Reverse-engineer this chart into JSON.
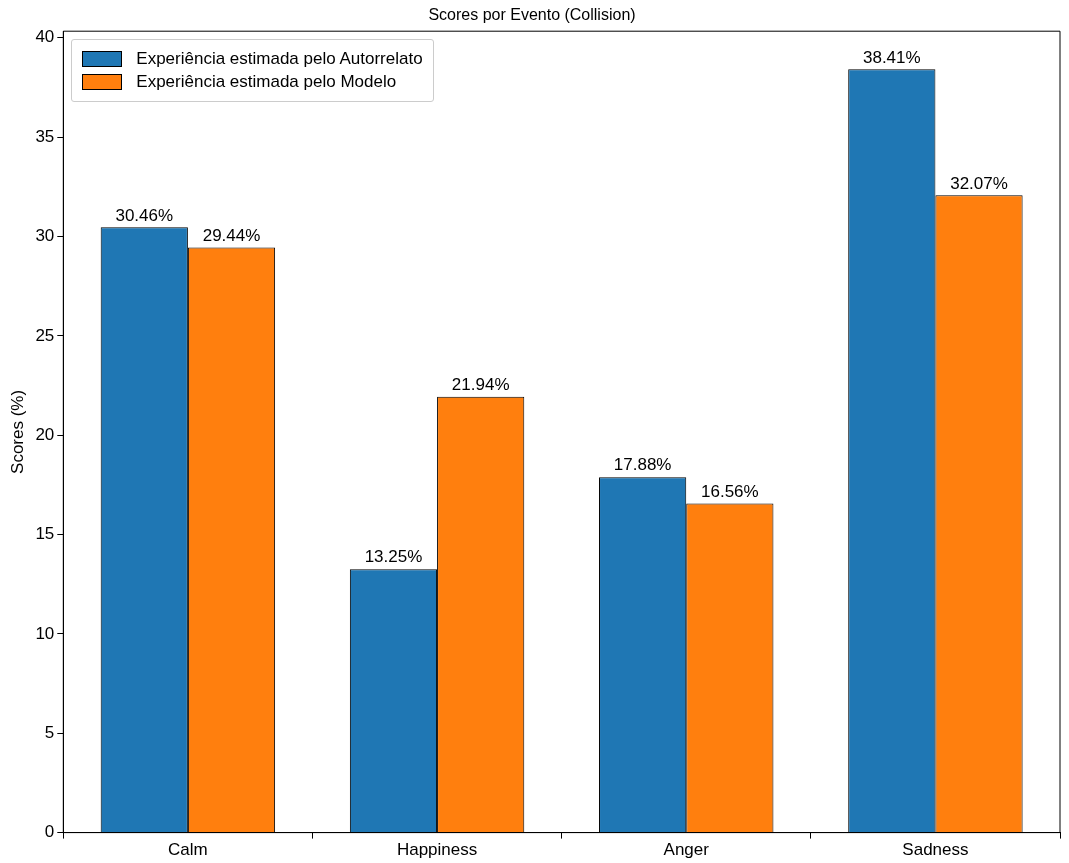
{
  "chart_data": {
    "type": "bar",
    "title": "Scores por Evento (Collision)",
    "ylabel": "Scores (%)",
    "categories": [
      "Calm",
      "Happiness",
      "Anger",
      "Sadness"
    ],
    "series": [
      {
        "name": "Experiência estimada pelo Autorrelato",
        "color": "#1f77b4",
        "values": [
          30.46,
          13.25,
          17.88,
          38.41
        ],
        "value_labels": [
          "30.46%",
          "13.25%",
          "17.88%",
          "38.41%"
        ]
      },
      {
        "name": "Experiência estimada pelo Modelo",
        "color": "#ff7f0e",
        "values": [
          29.44,
          21.94,
          16.56,
          32.07
        ],
        "value_labels": [
          "29.44%",
          "21.94%",
          "16.56%",
          "32.07%"
        ]
      }
    ],
    "ylim": [
      0,
      40.33
    ],
    "yticks": [
      0,
      5,
      10,
      15,
      20,
      25,
      30,
      35,
      40
    ],
    "grid": false,
    "legend": "top left"
  }
}
